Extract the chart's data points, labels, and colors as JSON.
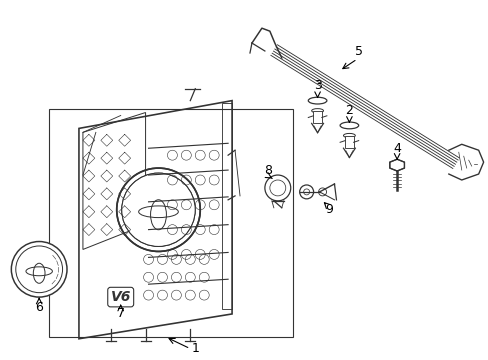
{
  "bg_color": "#ffffff",
  "line_color": "#333333",
  "text_color": "#000000",
  "label_fontsize": 9,
  "fig_width": 4.89,
  "fig_height": 3.6,
  "dpi": 100
}
